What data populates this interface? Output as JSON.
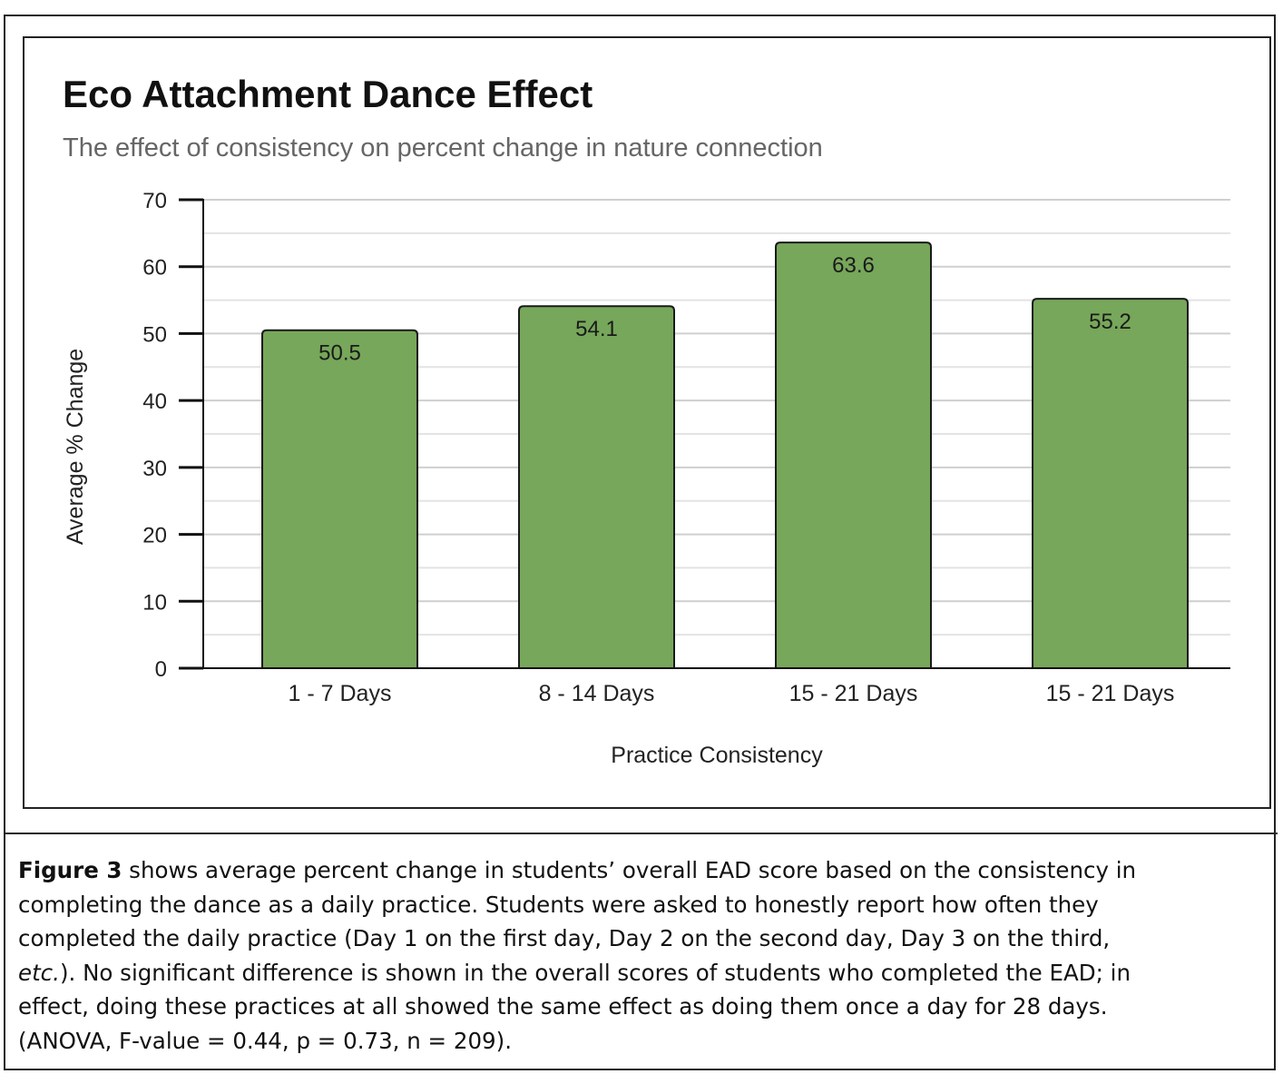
{
  "chart_data": {
    "type": "bar",
    "title": "Eco Attachment Dance Effect",
    "subtitle": "The effect of consistency on percent change in nature connection",
    "xlabel": "Practice Consistency",
    "ylabel": "Average % Change",
    "categories": [
      "1 - 7 Days",
      "8 - 14 Days",
      "15 - 21 Days",
      "15 - 21 Days"
    ],
    "values": [
      50.5,
      54.1,
      63.6,
      55.2
    ],
    "data_labels": [
      "50.5",
      "54.1",
      "63.6",
      "55.2"
    ],
    "ylim": [
      0,
      70
    ],
    "yticks": [
      0,
      10,
      20,
      30,
      40,
      50,
      60,
      70
    ],
    "minor_grid_step": 5,
    "grid": true,
    "legend": "none",
    "bar_color": "#77a75a",
    "bar_outline": "#1a1a1a"
  },
  "caption": {
    "lead": "Figure 3",
    "l1": " shows average percent change in students’ overall EAD score based on the consistency in",
    "l2": "completing the dance as a daily practice. Students were asked to honestly report how often they",
    "l3": "completed the daily practice (Day 1 on the first day, Day 2 on the second day, Day 3 on the third,",
    "l4_italic": "etc.",
    "l4": "). No significant difference is shown in the overall scores of students who completed the EAD; in",
    "l5": "effect, doing these practices at all showed the same effect as doing them once a day for 28 days.",
    "l6": "(ANOVA, F-value = 0.44, p = 0.73, n = 209)."
  }
}
